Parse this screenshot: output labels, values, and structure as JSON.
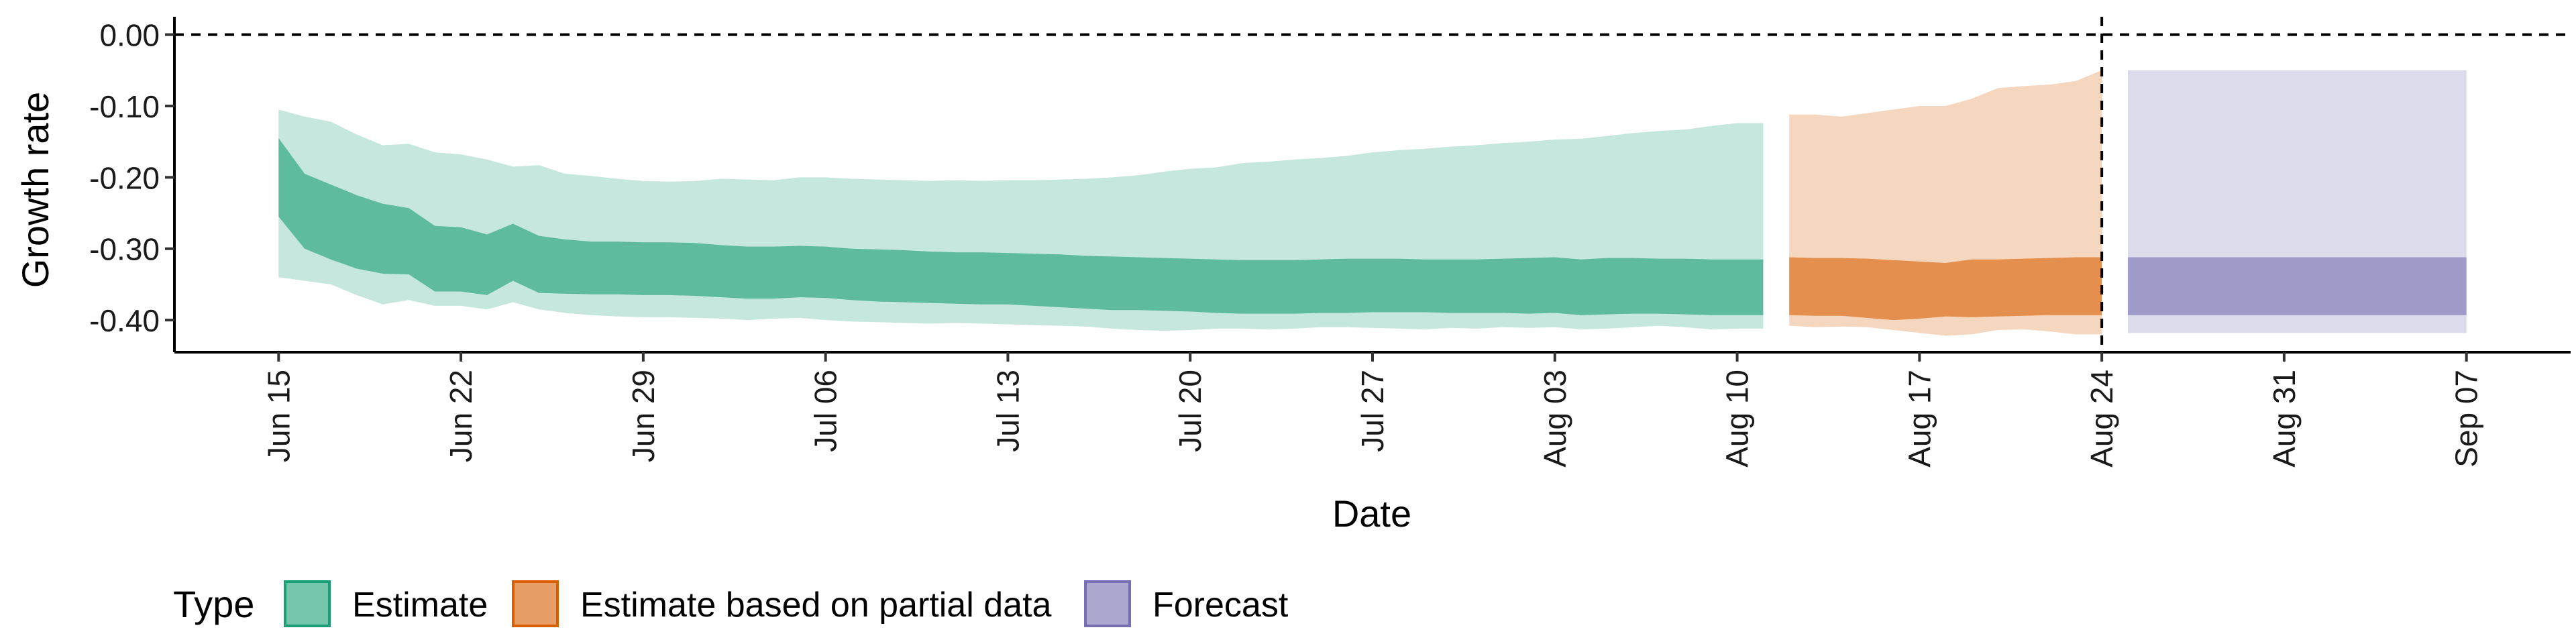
{
  "chart_data": {
    "type": "area",
    "xlabel": "Date",
    "ylabel": "Growth rate",
    "x_ticks": [
      "Jun 15",
      "Jun 22",
      "Jun 29",
      "Jul 06",
      "Jul 13",
      "Jul 20",
      "Jul 27",
      "Aug 03",
      "Aug 10",
      "Aug 17",
      "Aug 24",
      "Aug 31",
      "Sep 07"
    ],
    "y_ticks": [
      "0.00",
      "-0.10",
      "-0.20",
      "-0.30",
      "-0.40"
    ],
    "xlim": [
      "2020-06-11",
      "2020-09-11"
    ],
    "ylim": [
      -0.445,
      0.025
    ],
    "reference_lines": {
      "horizontal_y": 0.0,
      "vertical_date": "2020-08-24"
    },
    "grid": false,
    "legend": {
      "position": "bottom",
      "title": "Type",
      "items": [
        {
          "label": "Estimate",
          "color": "#1b9e77"
        },
        {
          "label": "Estimate based on partial data",
          "color": "#d95f02"
        },
        {
          "label": "Forecast",
          "color": "#7570b3"
        }
      ]
    },
    "series": [
      {
        "name": "Estimate",
        "color": "#1b9e77",
        "dates": [
          "2020-06-15",
          "2020-06-16",
          "2020-06-17",
          "2020-06-18",
          "2020-06-19",
          "2020-06-20",
          "2020-06-21",
          "2020-06-22",
          "2020-06-23",
          "2020-06-24",
          "2020-06-25",
          "2020-06-26",
          "2020-06-27",
          "2020-06-28",
          "2020-06-29",
          "2020-06-30",
          "2020-07-01",
          "2020-07-02",
          "2020-07-03",
          "2020-07-04",
          "2020-07-05",
          "2020-07-06",
          "2020-07-07",
          "2020-07-08",
          "2020-07-09",
          "2020-07-10",
          "2020-07-11",
          "2020-07-12",
          "2020-07-13",
          "2020-07-14",
          "2020-07-15",
          "2020-07-16",
          "2020-07-17",
          "2020-07-18",
          "2020-07-19",
          "2020-07-20",
          "2020-07-21",
          "2020-07-22",
          "2020-07-23",
          "2020-07-24",
          "2020-07-25",
          "2020-07-26",
          "2020-07-27",
          "2020-07-28",
          "2020-07-29",
          "2020-07-30",
          "2020-07-31",
          "2020-08-01",
          "2020-08-02",
          "2020-08-03",
          "2020-08-04",
          "2020-08-05",
          "2020-08-06",
          "2020-08-07",
          "2020-08-08",
          "2020-08-09",
          "2020-08-10",
          "2020-08-11"
        ],
        "upper_90": [
          -0.105,
          -0.115,
          -0.122,
          -0.14,
          -0.155,
          -0.153,
          -0.165,
          -0.168,
          -0.175,
          -0.185,
          -0.183,
          -0.195,
          -0.198,
          -0.202,
          -0.205,
          -0.206,
          -0.205,
          -0.202,
          -0.203,
          -0.204,
          -0.2,
          -0.2,
          -0.202,
          -0.203,
          -0.204,
          -0.205,
          -0.204,
          -0.205,
          -0.204,
          -0.204,
          -0.203,
          -0.202,
          -0.2,
          -0.197,
          -0.192,
          -0.188,
          -0.186,
          -0.18,
          -0.178,
          -0.175,
          -0.173,
          -0.17,
          -0.165,
          -0.162,
          -0.16,
          -0.157,
          -0.155,
          -0.152,
          -0.15,
          -0.147,
          -0.146,
          -0.142,
          -0.138,
          -0.135,
          -0.133,
          -0.128,
          -0.124,
          -0.124
        ],
        "upper_50": [
          -0.145,
          -0.195,
          -0.21,
          -0.225,
          -0.237,
          -0.243,
          -0.268,
          -0.27,
          -0.28,
          -0.265,
          -0.282,
          -0.287,
          -0.29,
          -0.29,
          -0.291,
          -0.291,
          -0.292,
          -0.295,
          -0.297,
          -0.297,
          -0.296,
          -0.297,
          -0.3,
          -0.301,
          -0.302,
          -0.304,
          -0.305,
          -0.305,
          -0.306,
          -0.307,
          -0.308,
          -0.31,
          -0.311,
          -0.312,
          -0.313,
          -0.314,
          -0.315,
          -0.316,
          -0.316,
          -0.316,
          -0.315,
          -0.314,
          -0.314,
          -0.314,
          -0.315,
          -0.315,
          -0.315,
          -0.314,
          -0.313,
          -0.312,
          -0.315,
          -0.313,
          -0.313,
          -0.314,
          -0.314,
          -0.315,
          -0.315,
          -0.315
        ],
        "lower_50": [
          -0.255,
          -0.3,
          -0.315,
          -0.328,
          -0.335,
          -0.336,
          -0.36,
          -0.36,
          -0.365,
          -0.345,
          -0.362,
          -0.363,
          -0.364,
          -0.364,
          -0.365,
          -0.365,
          -0.366,
          -0.368,
          -0.37,
          -0.37,
          -0.368,
          -0.369,
          -0.372,
          -0.374,
          -0.375,
          -0.376,
          -0.377,
          -0.378,
          -0.378,
          -0.38,
          -0.382,
          -0.384,
          -0.386,
          -0.386,
          -0.387,
          -0.388,
          -0.39,
          -0.391,
          -0.391,
          -0.391,
          -0.39,
          -0.39,
          -0.389,
          -0.389,
          -0.389,
          -0.39,
          -0.39,
          -0.39,
          -0.391,
          -0.39,
          -0.393,
          -0.392,
          -0.391,
          -0.391,
          -0.392,
          -0.393,
          -0.393,
          -0.393
        ],
        "lower_90": [
          -0.34,
          -0.345,
          -0.35,
          -0.365,
          -0.378,
          -0.372,
          -0.38,
          -0.38,
          -0.385,
          -0.375,
          -0.385,
          -0.39,
          -0.393,
          -0.395,
          -0.396,
          -0.396,
          -0.397,
          -0.398,
          -0.4,
          -0.398,
          -0.397,
          -0.4,
          -0.402,
          -0.403,
          -0.404,
          -0.405,
          -0.404,
          -0.405,
          -0.406,
          -0.407,
          -0.408,
          -0.409,
          -0.412,
          -0.414,
          -0.415,
          -0.414,
          -0.412,
          -0.412,
          -0.413,
          -0.412,
          -0.41,
          -0.41,
          -0.411,
          -0.412,
          -0.413,
          -0.411,
          -0.412,
          -0.41,
          -0.411,
          -0.41,
          -0.413,
          -0.412,
          -0.41,
          -0.408,
          -0.41,
          -0.413,
          -0.412,
          -0.412
        ]
      },
      {
        "name": "Estimate based on partial data",
        "color": "#d95f02",
        "dates": [
          "2020-08-12",
          "2020-08-13",
          "2020-08-14",
          "2020-08-15",
          "2020-08-16",
          "2020-08-17",
          "2020-08-18",
          "2020-08-19",
          "2020-08-20",
          "2020-08-21",
          "2020-08-22",
          "2020-08-23",
          "2020-08-24"
        ],
        "upper_90": [
          -0.112,
          -0.112,
          -0.115,
          -0.11,
          -0.105,
          -0.1,
          -0.1,
          -0.09,
          -0.075,
          -0.072,
          -0.07,
          -0.065,
          -0.05
        ],
        "upper_50": [
          -0.312,
          -0.313,
          -0.313,
          -0.314,
          -0.316,
          -0.318,
          -0.32,
          -0.315,
          -0.315,
          -0.314,
          -0.313,
          -0.312,
          -0.312
        ],
        "lower_50": [
          -0.393,
          -0.394,
          -0.394,
          -0.397,
          -0.4,
          -0.398,
          -0.395,
          -0.396,
          -0.395,
          -0.394,
          -0.393,
          -0.393,
          -0.393
        ],
        "lower_90": [
          -0.408,
          -0.41,
          -0.409,
          -0.41,
          -0.414,
          -0.418,
          -0.422,
          -0.42,
          -0.414,
          -0.413,
          -0.416,
          -0.42,
          -0.42
        ]
      },
      {
        "name": "Forecast",
        "color": "#7570b3",
        "dates": [
          "2020-08-25",
          "2020-09-07"
        ],
        "upper_90": [
          -0.05,
          -0.05
        ],
        "upper_50": [
          -0.312,
          -0.312
        ],
        "lower_50": [
          -0.393,
          -0.393
        ],
        "lower_90": [
          -0.418,
          -0.418
        ]
      }
    ]
  }
}
